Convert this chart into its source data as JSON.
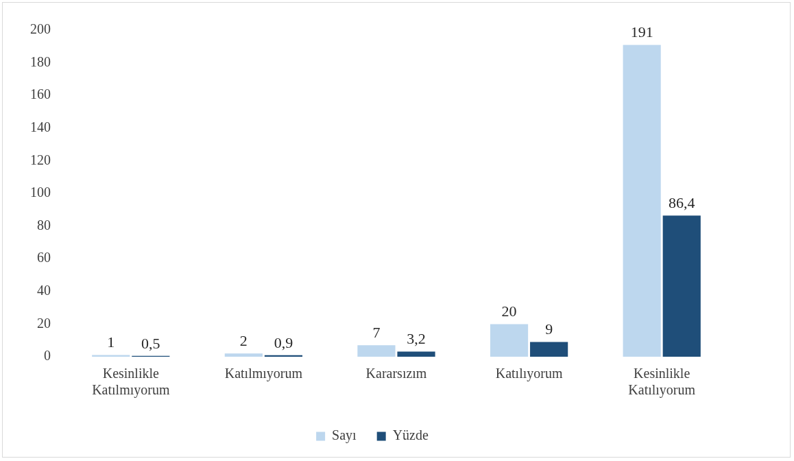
{
  "chart_data": {
    "type": "bar",
    "categories": [
      "Kesinlikle Katılmıyorum",
      "Katılmıyorum",
      "Kararsızım",
      "Katılıyorum",
      "Kesinlikle Katılıyorum"
    ],
    "series": [
      {
        "name": "Sayı",
        "color": "#bdd7ee",
        "values": [
          1,
          2,
          7,
          20,
          191
        ],
        "value_labels": [
          "1",
          "2",
          "7",
          "20",
          "191"
        ]
      },
      {
        "name": "Yüzde",
        "color": "#1f4e79",
        "values": [
          0.5,
          0.9,
          3.2,
          9,
          86.4
        ],
        "value_labels": [
          "0,5",
          "0,9",
          "3,2",
          "9",
          "86,4"
        ]
      }
    ],
    "ylim": [
      0,
      200
    ],
    "yticks": [
      0,
      20,
      40,
      60,
      80,
      100,
      120,
      140,
      160,
      180,
      200
    ],
    "grid": false,
    "legend": "bottom"
  }
}
